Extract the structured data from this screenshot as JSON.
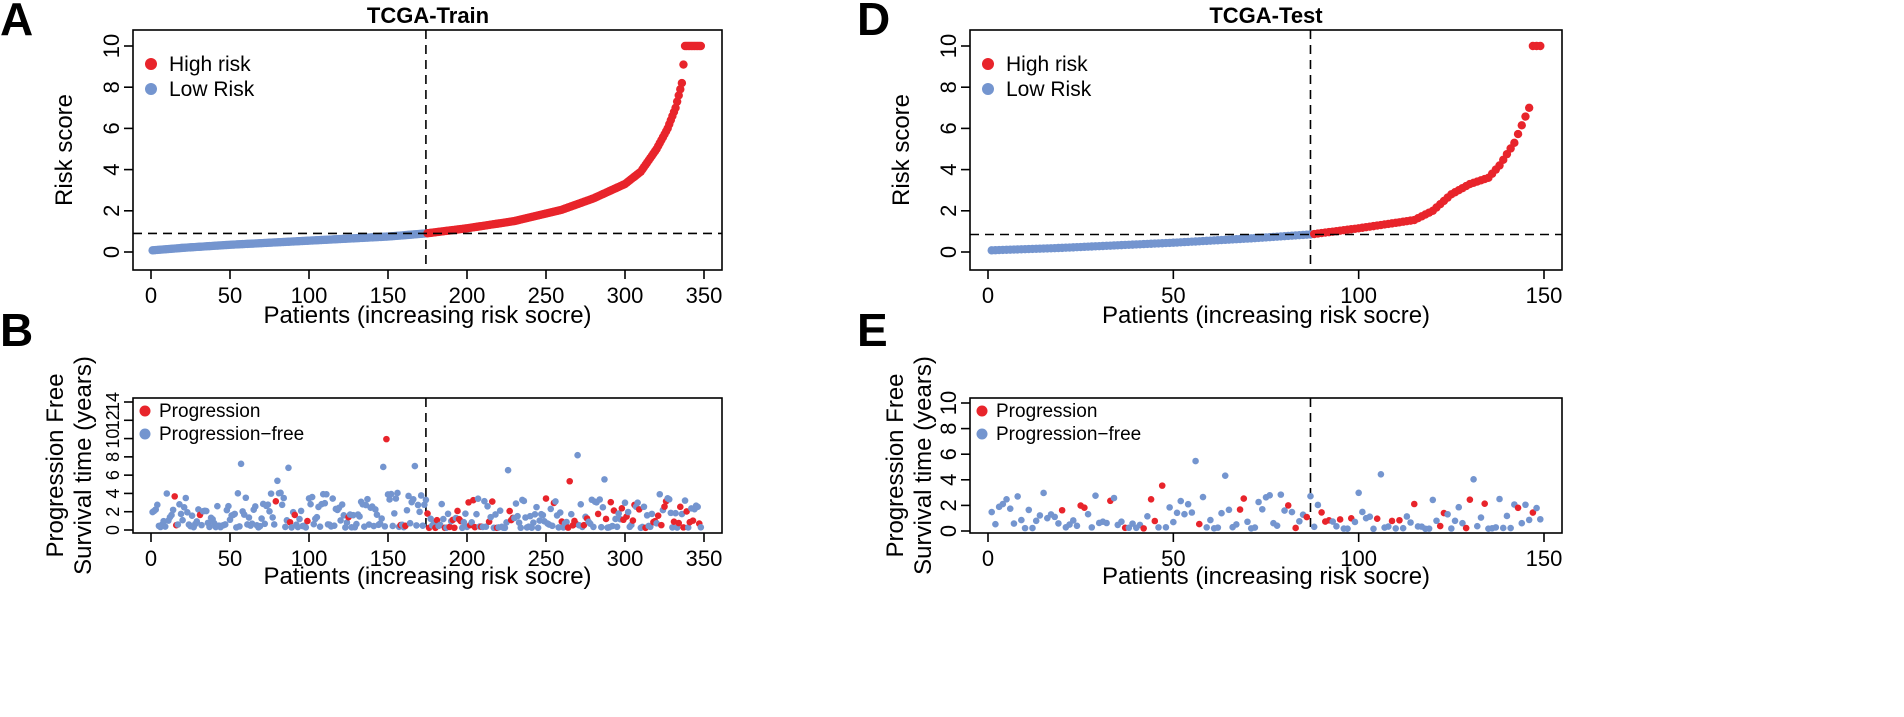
{
  "colors": {
    "high": "#e8242b",
    "low": "#7495cf"
  },
  "chart_data": [
    {
      "panel": "A",
      "type": "scatter",
      "title": "TCGA-Train",
      "xlabel": "Patients (increasing risk socre)",
      "ylabel": "Risk score",
      "xlim": [
        0,
        350
      ],
      "ylim": [
        0,
        10
      ],
      "n": 348,
      "cutoff_index": 174,
      "cutoff_value": 0.9,
      "xticks": [
        "0",
        "50",
        "100",
        "150",
        "200",
        "250",
        "300",
        "350"
      ],
      "yticks": [
        "0",
        "2",
        "4",
        "6",
        "8",
        "10"
      ],
      "legend": [
        "High risk",
        "Low Risk"
      ],
      "curve_knots": [
        [
          1,
          0.08
        ],
        [
          20,
          0.2
        ],
        [
          50,
          0.35
        ],
        [
          100,
          0.55
        ],
        [
          150,
          0.75
        ],
        [
          174,
          0.9
        ],
        [
          200,
          1.15
        ],
        [
          230,
          1.5
        ],
        [
          260,
          2.05
        ],
        [
          280,
          2.6
        ],
        [
          300,
          3.3
        ],
        [
          310,
          3.9
        ],
        [
          320,
          5.0
        ],
        [
          327,
          6.0
        ],
        [
          332,
          7.0
        ],
        [
          336,
          8.2
        ],
        [
          338,
          10.0
        ],
        [
          348,
          10.0
        ]
      ]
    },
    {
      "panel": "B",
      "type": "scatter",
      "xlabel": "Patients (increasing risk socre)",
      "ylabel": [
        "Progression Free",
        "Survival time (years)"
      ],
      "xlim": [
        0,
        350
      ],
      "ylim": [
        0,
        14
      ],
      "n": 348,
      "cutoff_index": 174,
      "xticks": [
        "0",
        "50",
        "100",
        "150",
        "200",
        "250",
        "300",
        "350"
      ],
      "yticks": [
        "0",
        "2",
        "4",
        "6",
        "8",
        "10",
        "12",
        "14"
      ],
      "legend": [
        "Progression",
        "Progression−free"
      ],
      "progression_ratio_low": 0.08,
      "progression_ratio_high": 0.3
    },
    {
      "panel": "D",
      "type": "scatter",
      "title": "TCGA-Test",
      "xlabel": "Patients (increasing risk socre)",
      "ylabel": "Risk score",
      "xlim": [
        0,
        150
      ],
      "ylim": [
        0,
        10
      ],
      "n": 149,
      "cutoff_index": 87,
      "cutoff_value": 0.85,
      "xticks": [
        "0",
        "50",
        "100",
        "150"
      ],
      "yticks": [
        "0",
        "2",
        "4",
        "6",
        "8",
        "10"
      ],
      "legend": [
        "High risk",
        "Low Risk"
      ],
      "curve_knots": [
        [
          1,
          0.08
        ],
        [
          20,
          0.2
        ],
        [
          50,
          0.45
        ],
        [
          70,
          0.65
        ],
        [
          87,
          0.85
        ],
        [
          100,
          1.15
        ],
        [
          115,
          1.55
        ],
        [
          120,
          2.0
        ],
        [
          125,
          2.8
        ],
        [
          130,
          3.3
        ],
        [
          135,
          3.6
        ],
        [
          138,
          4.2
        ],
        [
          142,
          5.3
        ],
        [
          146,
          7.0
        ],
        [
          147,
          10.0
        ],
        [
          149,
          10.0
        ]
      ]
    },
    {
      "panel": "E",
      "type": "scatter",
      "xlabel": "Patients (increasing risk socre)",
      "ylabel": [
        "Progression Free",
        "Survival time (years)"
      ],
      "xlim": [
        0,
        150
      ],
      "ylim": [
        0,
        10
      ],
      "n": 149,
      "cutoff_index": 87,
      "xticks": [
        "0",
        "50",
        "100",
        "150"
      ],
      "yticks": [
        "0",
        "2",
        "4",
        "6",
        "8",
        "10"
      ],
      "legend": [
        "Progression",
        "Progression−free"
      ],
      "progression_ratio_low": 0.1,
      "progression_ratio_high": 0.3
    }
  ]
}
